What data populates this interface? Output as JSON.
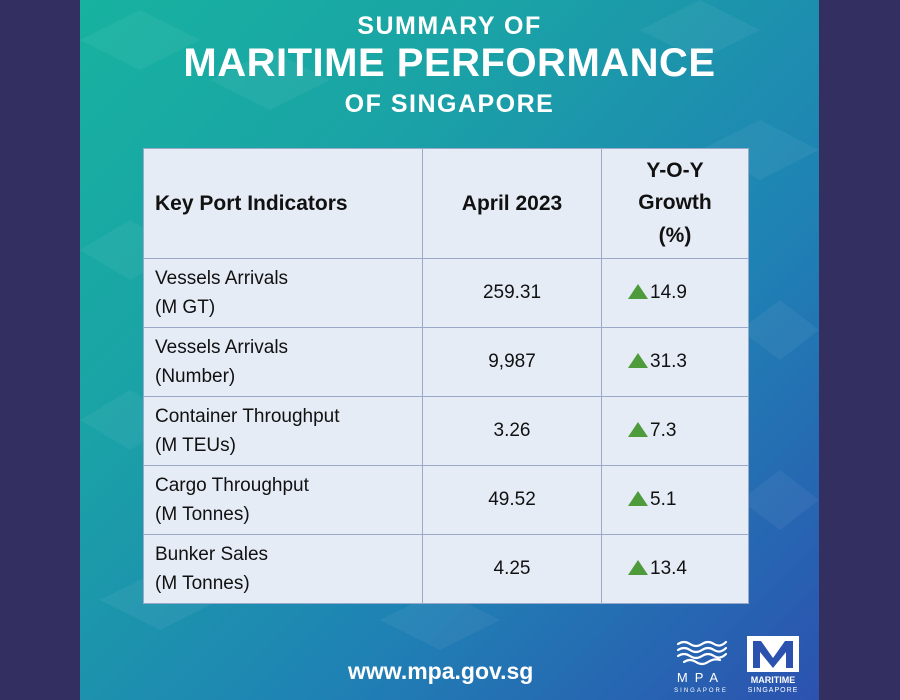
{
  "header": {
    "line1": "SUMMARY OF",
    "line2": "MARITIME PERFORMANCE",
    "line3": "OF SINGAPORE"
  },
  "table": {
    "headers": {
      "indicator": "Key Port Indicators",
      "period": "April 2023",
      "growth_line1": "Y-O-Y",
      "growth_line2": "Growth",
      "growth_line3": "(%)"
    },
    "rows": [
      {
        "name": "Vessels Arrivals",
        "unit": "(M GT)",
        "value": "259.31",
        "growth": "14.9"
      },
      {
        "name": "Vessels Arrivals",
        "unit": "(Number)",
        "value": "9,987",
        "growth": "31.3"
      },
      {
        "name": "Container Throughput",
        "unit": "(M TEUs)",
        "value": "3.26",
        "growth": "7.3"
      },
      {
        "name": "Cargo Throughput",
        "unit": "(M Tonnes)",
        "value": "49.52",
        "growth": "5.1"
      },
      {
        "name": "Bunker Sales",
        "unit": "(M Tonnes)",
        "value": "4.25",
        "growth": "13.4"
      }
    ]
  },
  "footer": {
    "url": "www.mpa.gov.sg",
    "mpa_logo_text": "MPA",
    "mpa_logo_sub": "SINGAPORE",
    "ms_logo_text": "MARITIME",
    "ms_logo_sub": "SINGAPORE"
  },
  "colors": {
    "up_arrow": "#4e9b3c",
    "outer_background": "#332f60",
    "table_background": "#e6ecf6"
  },
  "icons": {
    "growth_indicator": "up-triangle-icon"
  }
}
